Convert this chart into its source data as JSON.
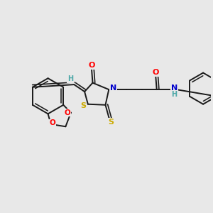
{
  "bg_color": "#e8e8e8",
  "bond_color": "#1a1a1a",
  "bond_lw": 1.4,
  "atom_colors": {
    "O": "#ff0000",
    "N": "#0000cc",
    "S": "#ccaa00",
    "H": "#4da8a8",
    "C": "#1a1a1a"
  },
  "figsize": [
    3.0,
    3.0
  ],
  "dpi": 100
}
